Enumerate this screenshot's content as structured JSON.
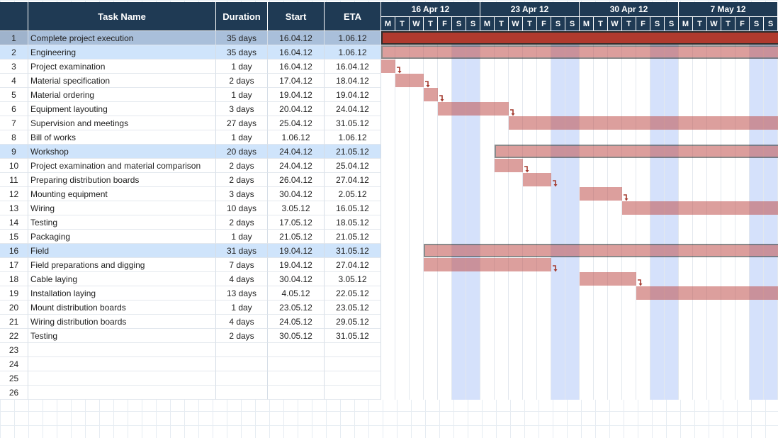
{
  "columns": {
    "num": "",
    "name": "Task Name",
    "duration": "Duration",
    "start": "Start",
    "eta": "ETA"
  },
  "weeks": [
    "16 Apr 12",
    "23 Apr 12",
    "30 Apr 12",
    "7 May 12"
  ],
  "day_letters": [
    "M",
    "T",
    "W",
    "T",
    "F",
    "S",
    "S"
  ],
  "tasks": [
    {
      "num": "1",
      "name": "Complete project execution",
      "duration": "35 days",
      "start": "16.04.12",
      "eta": "1.06.12",
      "type": "selected"
    },
    {
      "num": "2",
      "name": "Engineering",
      "duration": "35 days",
      "start": "16.04.12",
      "eta": "1.06.12",
      "type": "group"
    },
    {
      "num": "3",
      "name": "Project examination",
      "duration": "1 day",
      "start": "16.04.12",
      "eta": "16.04.12",
      "type": "task"
    },
    {
      "num": "4",
      "name": "Material specification",
      "duration": "2 days",
      "start": "17.04.12",
      "eta": "18.04.12",
      "type": "task"
    },
    {
      "num": "5",
      "name": "Material ordering",
      "duration": "1 day",
      "start": "19.04.12",
      "eta": "19.04.12",
      "type": "task"
    },
    {
      "num": "6",
      "name": "Equipment layouting",
      "duration": "3 days",
      "start": "20.04.12",
      "eta": "24.04.12",
      "type": "task"
    },
    {
      "num": "7",
      "name": "Supervision and meetings",
      "duration": "27 days",
      "start": "25.04.12",
      "eta": "31.05.12",
      "type": "task"
    },
    {
      "num": "8",
      "name": "Bill of works",
      "duration": "1 day",
      "start": "1.06.12",
      "eta": "1.06.12",
      "type": "task"
    },
    {
      "num": "9",
      "name": "Workshop",
      "duration": "20 days",
      "start": "24.04.12",
      "eta": "21.05.12",
      "type": "group"
    },
    {
      "num": "10",
      "name": "Project examination and material comparison",
      "duration": "2 days",
      "start": "24.04.12",
      "eta": "25.04.12",
      "type": "task"
    },
    {
      "num": "11",
      "name": "Preparing distribution boards",
      "duration": "2 days",
      "start": "26.04.12",
      "eta": "27.04.12",
      "type": "task"
    },
    {
      "num": "12",
      "name": "Mounting equipment",
      "duration": "3 days",
      "start": "30.04.12",
      "eta": "2.05.12",
      "type": "task"
    },
    {
      "num": "13",
      "name": "Wiring",
      "duration": "10 days",
      "start": "3.05.12",
      "eta": "16.05.12",
      "type": "task"
    },
    {
      "num": "14",
      "name": "Testing",
      "duration": "2 days",
      "start": "17.05.12",
      "eta": "18.05.12",
      "type": "task"
    },
    {
      "num": "15",
      "name": "Packaging",
      "duration": "1 day",
      "start": "21.05.12",
      "eta": "21.05.12",
      "type": "task"
    },
    {
      "num": "16",
      "name": "Field",
      "duration": "31 days",
      "start": "19.04.12",
      "eta": "31.05.12",
      "type": "group"
    },
    {
      "num": "17",
      "name": "Field preparations and digging",
      "duration": "7 days",
      "start": "19.04.12",
      "eta": "27.04.12",
      "type": "task"
    },
    {
      "num": "18",
      "name": "Cable laying",
      "duration": "4 days",
      "start": "30.04.12",
      "eta": "3.05.12",
      "type": "task"
    },
    {
      "num": "19",
      "name": "Installation laying",
      "duration": "13 days",
      "start": "4.05.12",
      "eta": "22.05.12",
      "type": "task"
    },
    {
      "num": "20",
      "name": "Mount distribution boards",
      "duration": "1 day",
      "start": "23.05.12",
      "eta": "23.05.12",
      "type": "task"
    },
    {
      "num": "21",
      "name": "Wiring distribution boards",
      "duration": "4 days",
      "start": "24.05.12",
      "eta": "29.05.12",
      "type": "task"
    },
    {
      "num": "22",
      "name": "Testing",
      "duration": "2 days",
      "start": "30.05.12",
      "eta": "31.05.12",
      "type": "task"
    },
    {
      "num": "23",
      "name": "",
      "duration": "",
      "start": "",
      "eta": "",
      "type": "empty"
    },
    {
      "num": "24",
      "name": "",
      "duration": "",
      "start": "",
      "eta": "",
      "type": "empty"
    },
    {
      "num": "25",
      "name": "",
      "duration": "",
      "start": "",
      "eta": "",
      "type": "empty"
    },
    {
      "num": "26",
      "name": "",
      "duration": "",
      "start": "",
      "eta": "",
      "type": "empty"
    }
  ],
  "colors": {
    "header": "#1f3a54",
    "bar": "#c0504d",
    "bar_top": "#b03a2e",
    "weekend": "#d5e1fb",
    "group_row": "#cfe4fb",
    "selected_row": "#a9bfda",
    "arrow": "#a33a2e"
  }
}
